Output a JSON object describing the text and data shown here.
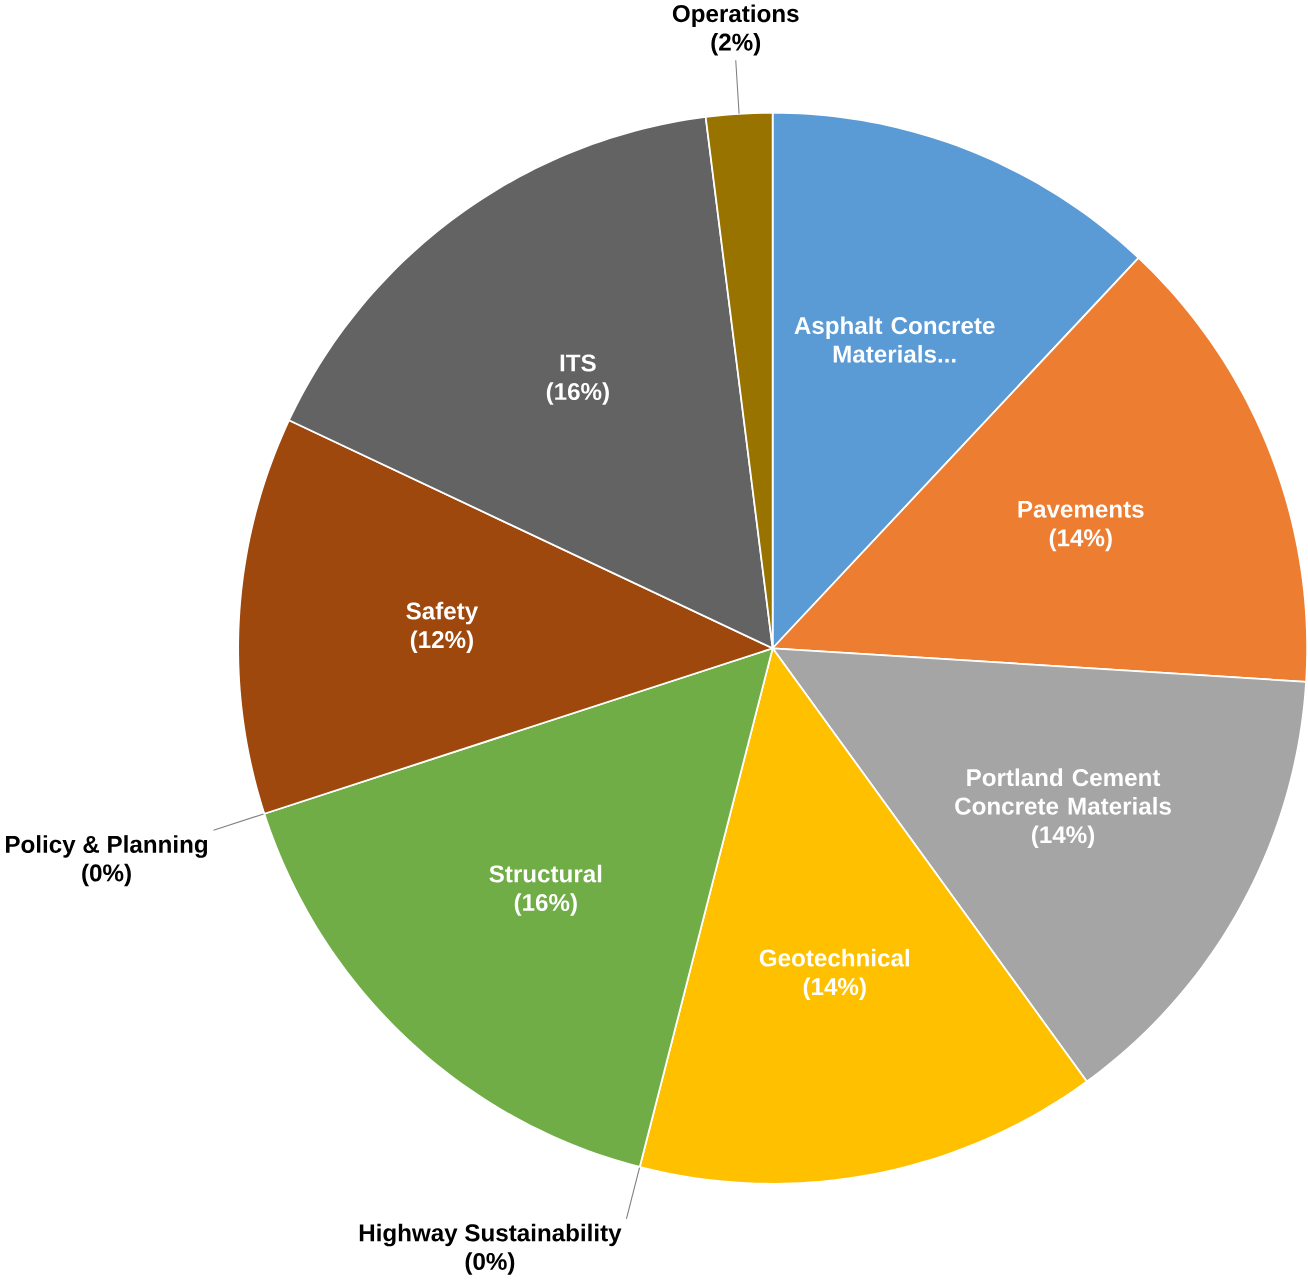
{
  "chart_data": {
    "type": "pie",
    "categories": [
      "Asphalt Concrete Materials...",
      "Pavements",
      "Portland Cement Concrete Materials",
      "Geotechnical",
      "Highway Sustainability",
      "Structural",
      "Policy & Planning",
      "Safety",
      "ITS",
      "Operations"
    ],
    "values": [
      12,
      14,
      14,
      14,
      0,
      16,
      0,
      12,
      16,
      2
    ],
    "colors": [
      "#5b9bd5",
      "#ed7d31",
      "#a5a5a5",
      "#ffc000",
      "#4472c4",
      "#70ad47",
      "#264478",
      "#9e480e",
      "#636363",
      "#997300"
    ],
    "value_labels": [
      null,
      "(14%)",
      "(14%)",
      "(14%)",
      "(0%)",
      "(16%)",
      "(0%)",
      "(12%)",
      "(16%)",
      "(2%)"
    ]
  }
}
